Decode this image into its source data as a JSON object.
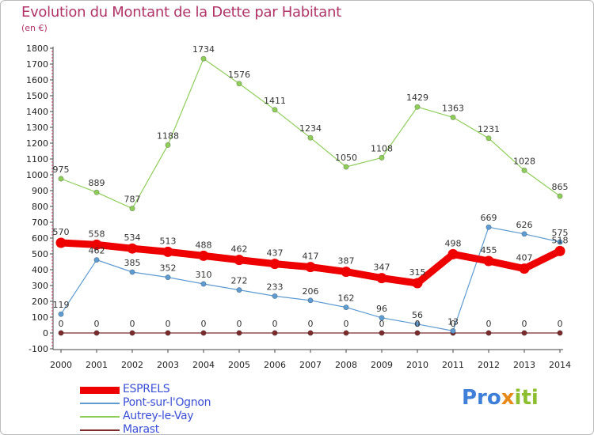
{
  "title": "Evolution du Montant de la Dette par Habitant",
  "subtitle": "(en €)",
  "logo": {
    "p1": "Pro",
    "p2": "x",
    "p3": "iti"
  },
  "chart_data": {
    "type": "line",
    "title": "Evolution du Montant de la Dette par Habitant",
    "subtitle": "(en €)",
    "x": [
      "2000",
      "2001",
      "2002",
      "2003",
      "2004",
      "2005",
      "2006",
      "2007",
      "2008",
      "2009",
      "2010",
      "2011",
      "2012",
      "2013",
      "2014"
    ],
    "ylim": [
      -100,
      1800
    ],
    "yticks": [
      -100,
      0,
      100,
      200,
      300,
      400,
      500,
      600,
      700,
      800,
      900,
      1000,
      1100,
      1200,
      1300,
      1400,
      1500,
      1600,
      1700,
      1800
    ],
    "grid": false,
    "legend_position": "bottom-left",
    "series": [
      {
        "name": "ESPRELS",
        "color": "#ee0000",
        "values": [
          570,
          558,
          534,
          513,
          488,
          462,
          437,
          417,
          387,
          347,
          315,
          498,
          455,
          407,
          518
        ]
      },
      {
        "name": "Pont-sur-l'Ognon",
        "color": "#5d9bd1",
        "values": [
          119,
          462,
          385,
          352,
          310,
          272,
          233,
          206,
          162,
          96,
          56,
          13,
          669,
          626,
          575
        ]
      },
      {
        "name": "Autrey-le-Vay",
        "color": "#8fcd5a",
        "values": [
          975,
          889,
          787,
          1188,
          1734,
          1576,
          1411,
          1234,
          1050,
          1108,
          1429,
          1363,
          1231,
          1028,
          865
        ]
      },
      {
        "name": "Marast",
        "color": "#7b2b2b",
        "values": [
          0,
          0,
          0,
          0,
          0,
          0,
          0,
          0,
          0,
          0,
          0,
          0,
          0,
          0,
          0
        ]
      }
    ]
  }
}
